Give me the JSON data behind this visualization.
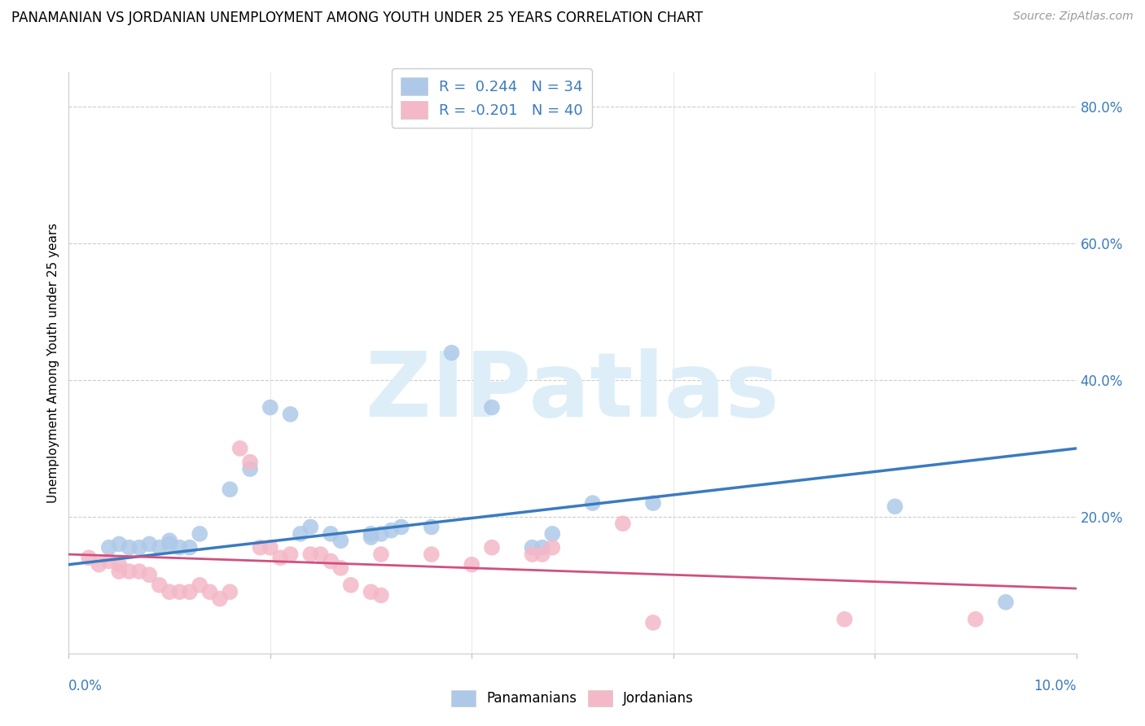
{
  "title": "PANAMANIAN VS JORDANIAN UNEMPLOYMENT AMONG YOUTH UNDER 25 YEARS CORRELATION CHART",
  "source": "Source: ZipAtlas.com",
  "ylabel": "Unemployment Among Youth under 25 years",
  "legend_label1": "Panamanians",
  "legend_label2": "Jordanians",
  "R1": 0.244,
  "N1": 34,
  "R2": -0.201,
  "N2": 40,
  "blue_color": "#aec9e8",
  "pink_color": "#f4b8c8",
  "blue_line_color": "#3a7bbf",
  "pink_line_color": "#d05080",
  "blue_scatter": [
    [
      0.004,
      0.155
    ],
    [
      0.005,
      0.16
    ],
    [
      0.006,
      0.155
    ],
    [
      0.007,
      0.155
    ],
    [
      0.008,
      0.16
    ],
    [
      0.009,
      0.155
    ],
    [
      0.01,
      0.16
    ],
    [
      0.01,
      0.165
    ],
    [
      0.011,
      0.155
    ],
    [
      0.012,
      0.155
    ],
    [
      0.013,
      0.175
    ],
    [
      0.016,
      0.24
    ],
    [
      0.018,
      0.27
    ],
    [
      0.02,
      0.36
    ],
    [
      0.022,
      0.35
    ],
    [
      0.023,
      0.175
    ],
    [
      0.024,
      0.185
    ],
    [
      0.026,
      0.175
    ],
    [
      0.027,
      0.165
    ],
    [
      0.03,
      0.175
    ],
    [
      0.03,
      0.17
    ],
    [
      0.031,
      0.175
    ],
    [
      0.032,
      0.18
    ],
    [
      0.033,
      0.185
    ],
    [
      0.036,
      0.185
    ],
    [
      0.038,
      0.44
    ],
    [
      0.042,
      0.36
    ],
    [
      0.046,
      0.155
    ],
    [
      0.047,
      0.155
    ],
    [
      0.048,
      0.175
    ],
    [
      0.052,
      0.22
    ],
    [
      0.058,
      0.22
    ],
    [
      0.082,
      0.215
    ],
    [
      0.093,
      0.075
    ]
  ],
  "pink_scatter": [
    [
      0.002,
      0.14
    ],
    [
      0.003,
      0.13
    ],
    [
      0.004,
      0.135
    ],
    [
      0.005,
      0.13
    ],
    [
      0.005,
      0.12
    ],
    [
      0.006,
      0.12
    ],
    [
      0.007,
      0.12
    ],
    [
      0.008,
      0.115
    ],
    [
      0.009,
      0.1
    ],
    [
      0.01,
      0.09
    ],
    [
      0.011,
      0.09
    ],
    [
      0.012,
      0.09
    ],
    [
      0.013,
      0.1
    ],
    [
      0.014,
      0.09
    ],
    [
      0.015,
      0.08
    ],
    [
      0.016,
      0.09
    ],
    [
      0.017,
      0.3
    ],
    [
      0.018,
      0.28
    ],
    [
      0.019,
      0.155
    ],
    [
      0.02,
      0.155
    ],
    [
      0.021,
      0.14
    ],
    [
      0.022,
      0.145
    ],
    [
      0.024,
      0.145
    ],
    [
      0.025,
      0.145
    ],
    [
      0.026,
      0.135
    ],
    [
      0.027,
      0.125
    ],
    [
      0.028,
      0.1
    ],
    [
      0.03,
      0.09
    ],
    [
      0.031,
      0.085
    ],
    [
      0.031,
      0.145
    ],
    [
      0.036,
      0.145
    ],
    [
      0.04,
      0.13
    ],
    [
      0.042,
      0.155
    ],
    [
      0.046,
      0.145
    ],
    [
      0.047,
      0.145
    ],
    [
      0.048,
      0.155
    ],
    [
      0.055,
      0.19
    ],
    [
      0.058,
      0.045
    ],
    [
      0.077,
      0.05
    ],
    [
      0.09,
      0.05
    ]
  ],
  "xlim": [
    0.0,
    0.1
  ],
  "ylim": [
    0.0,
    0.85
  ],
  "yticks": [
    0.0,
    0.2,
    0.4,
    0.6,
    0.8
  ],
  "ytick_labels_right": [
    "",
    "20.0%",
    "40.0%",
    "60.0%",
    "80.0%"
  ],
  "xtick_positions": [
    0.0,
    0.02,
    0.04,
    0.06,
    0.08,
    0.1
  ],
  "background_color": "#ffffff",
  "watermark_text": "ZIPatlas",
  "title_fontsize": 12,
  "source_fontsize": 10,
  "axis_label_color": "#3a7bbf",
  "tick_color": "#3a7bbf"
}
